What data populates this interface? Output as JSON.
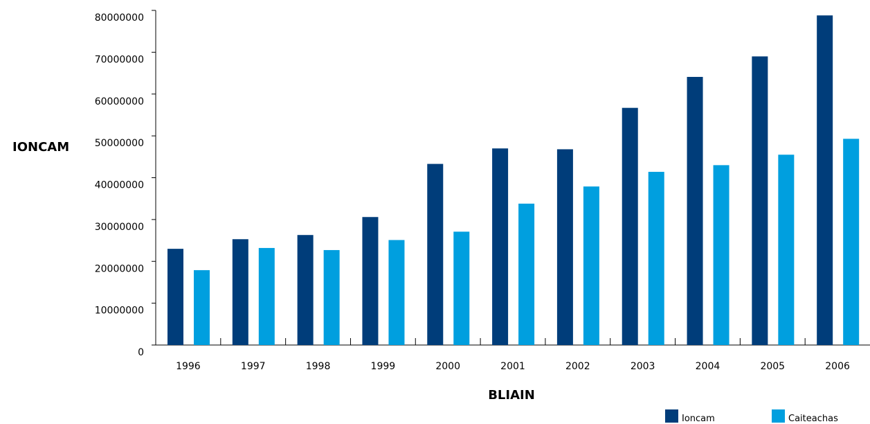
{
  "chart_data": {
    "type": "bar",
    "title": "",
    "xlabel": "BLIAIN",
    "ylabel": "IONCAM",
    "categories": [
      "1996",
      "1997",
      "1998",
      "1999",
      "2000",
      "2001",
      "2002",
      "2003",
      "2004",
      "2005",
      "2006"
    ],
    "series": [
      {
        "name": "Ioncam",
        "color": "#003d7a",
        "values": [
          23000000,
          25300000,
          26300000,
          30600000,
          43300000,
          47000000,
          46800000,
          56700000,
          64100000,
          69000000,
          78800000
        ]
      },
      {
        "name": "Caiteachas",
        "color": "#009fdf",
        "values": [
          17900000,
          23200000,
          22700000,
          25100000,
          27100000,
          33800000,
          37900000,
          41400000,
          43000000,
          45500000,
          49300000
        ]
      }
    ],
    "ylim": [
      0,
      80000000
    ],
    "yticks": [
      "0",
      "10000000",
      "20000000",
      "30000000",
      "40000000",
      "50000000",
      "60000000",
      "70000000",
      "80000000"
    ],
    "grid": false,
    "legend_position": "bottom-right"
  }
}
